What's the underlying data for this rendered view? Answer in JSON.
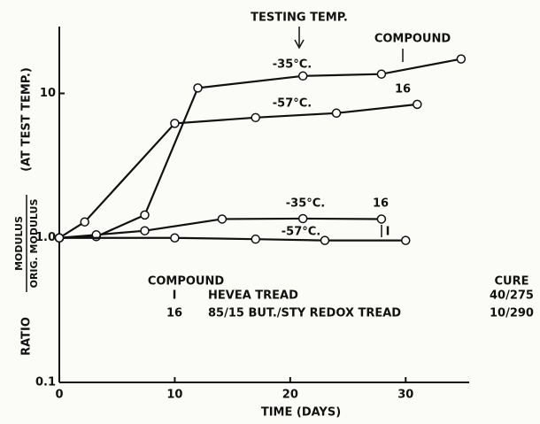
{
  "chart_data": {
    "type": "line",
    "log_y": true,
    "x_label": "TIME (DAYS)",
    "y_label": {
      "prefix": "RATIO",
      "numerator": "MODULUS",
      "denominator": "ORIG. MODULUS",
      "suffix": "(AT TEST TEMP.)"
    },
    "xlim": [
      0,
      35.5
    ],
    "xticks": [
      0,
      10,
      20,
      30
    ],
    "ylim": [
      0.1,
      29
    ],
    "yticks": [
      {
        "value": 0.1,
        "label": "0.1"
      },
      {
        "value": 1,
        "label": "1.0"
      },
      10
    ],
    "series": [
      {
        "color": "#111",
        "x": [
          0,
          3.2,
          7.4,
          12,
          21.1,
          27.9,
          34.8
        ],
        "values": [
          1.0,
          1.02,
          1.44,
          10.9,
          13.2,
          13.6,
          17.3
        ]
      },
      {
        "color": "#111",
        "x": [
          0,
          2.2,
          10,
          17,
          24,
          31
        ],
        "values": [
          1.0,
          1.29,
          6.2,
          6.8,
          7.3,
          8.4
        ]
      },
      {
        "color": "#111",
        "x": [
          0,
          3.2,
          7.4,
          14.1,
          21.1,
          27.9
        ],
        "values": [
          1.0,
          1.05,
          1.12,
          1.35,
          1.36,
          1.35
        ]
      },
      {
        "color": "#111",
        "x": [
          0,
          10,
          17,
          23,
          30
        ],
        "values": [
          1.0,
          1.0,
          0.98,
          0.96,
          0.96
        ]
      }
    ],
    "annotations": [
      "TESTING TEMP.",
      "COMPOUND",
      "-35°C.",
      "-57°C.",
      "16",
      "-35°C.",
      "16",
      "-57°C.",
      "I"
    ],
    "table": {
      "headers": [
        "COMPOUND",
        "CURE"
      ],
      "rows": [
        [
          "I",
          "HEVEA TREAD",
          "40/275"
        ],
        [
          "16",
          "85/15 BUT./STY REDOX TREAD",
          "10/290"
        ]
      ]
    }
  }
}
